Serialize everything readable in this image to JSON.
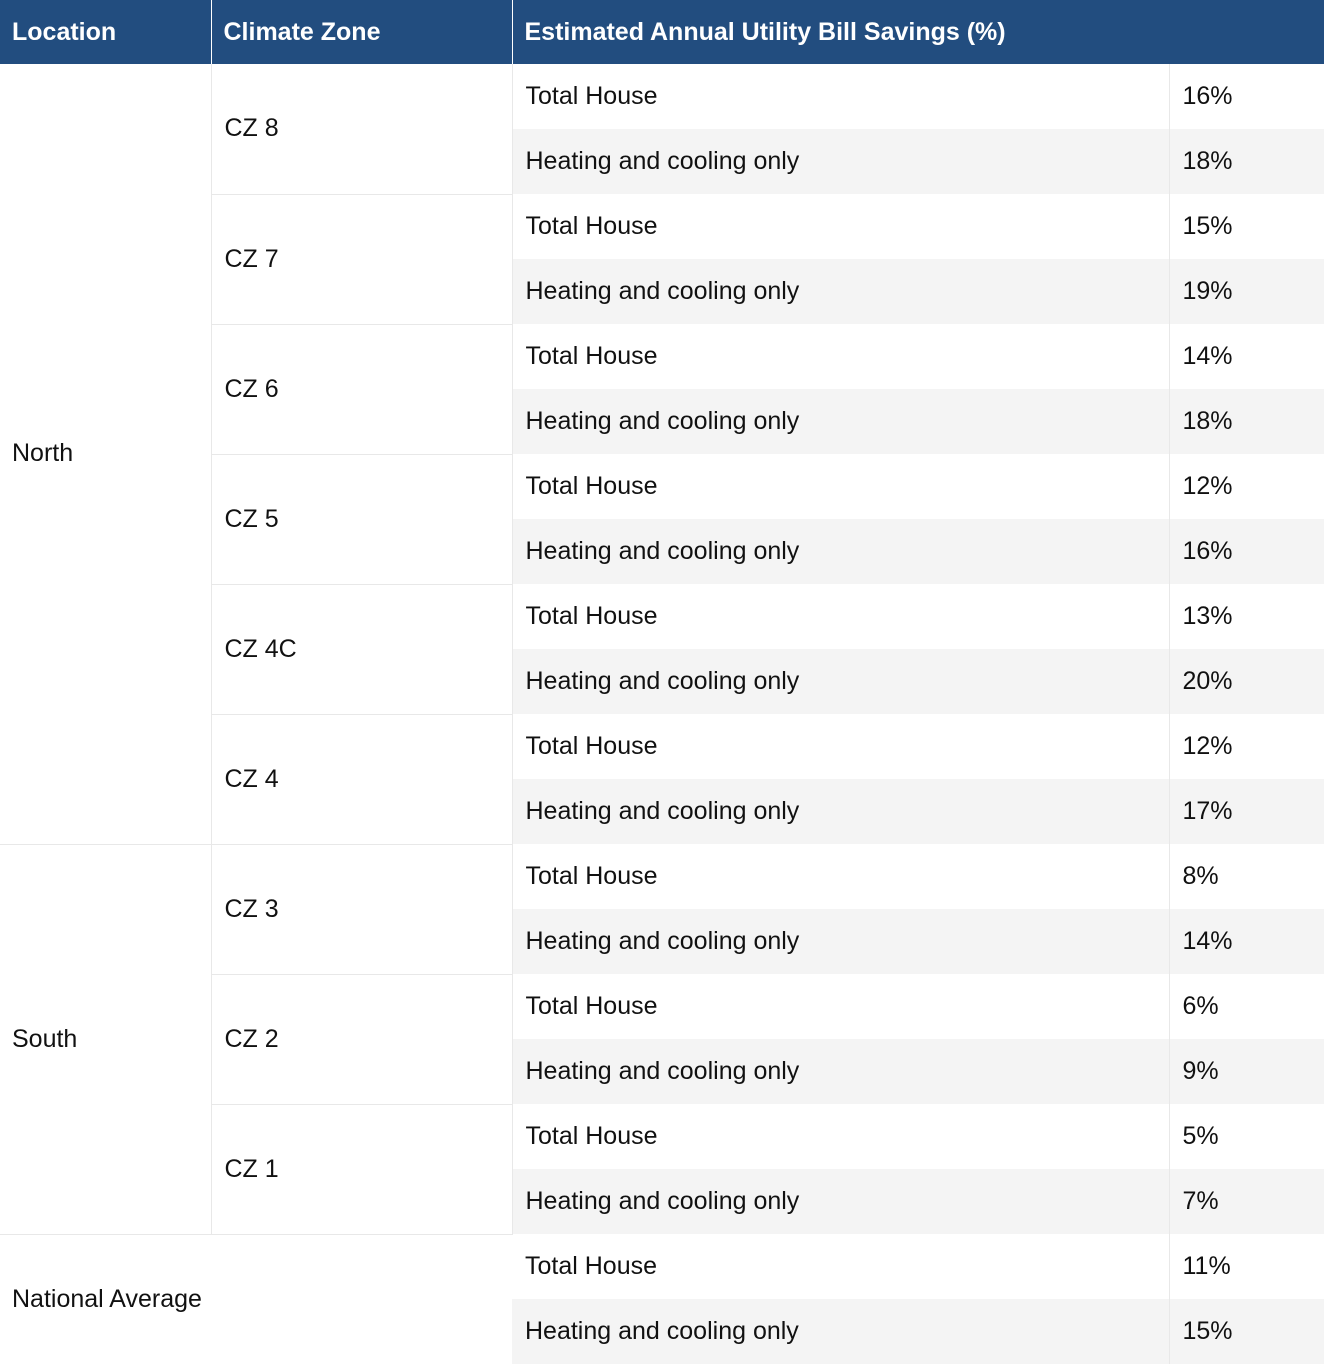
{
  "table": {
    "headers": {
      "location": "Location",
      "climate_zone": "Climate Zone",
      "savings": "Estimated Annual Utility Bill Savings (%)"
    },
    "row_labels": {
      "total": "Total House",
      "hvac": "Heating and cooling only"
    },
    "groups": [
      {
        "location": "North",
        "zones": [
          {
            "zone": "CZ 8",
            "total": "16%",
            "hvac": "18%"
          },
          {
            "zone": "CZ 7",
            "total": "15%",
            "hvac": "19%"
          },
          {
            "zone": "CZ 6",
            "total": "14%",
            "hvac": "18%"
          },
          {
            "zone": "CZ 5",
            "total": "12%",
            "hvac": "16%"
          },
          {
            "zone": "CZ 4C",
            "total": "13%",
            "hvac": "20%"
          },
          {
            "zone": "CZ 4",
            "total": "12%",
            "hvac": "17%"
          }
        ]
      },
      {
        "location": "South",
        "zones": [
          {
            "zone": "CZ 3",
            "total": "8%",
            "hvac": "14%"
          },
          {
            "zone": "CZ 2",
            "total": "6%",
            "hvac": "9%"
          },
          {
            "zone": "CZ 1",
            "total": "5%",
            "hvac": "7%"
          }
        ]
      }
    ],
    "national": {
      "location": "National Average",
      "total": "11%",
      "hvac": "15%"
    },
    "colors": {
      "header_bg": "#224d7f",
      "header_text": "#ffffff",
      "stripe_bg": "#f4f4f4",
      "border": "#e8e8e8"
    }
  }
}
